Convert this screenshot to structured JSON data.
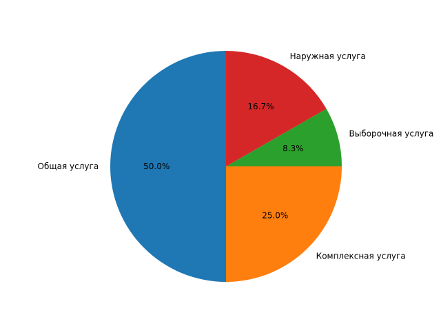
{
  "chart_data": {
    "type": "pie",
    "start_angle_deg": 90,
    "direction": "counterclockwise",
    "title": "",
    "slices": [
      {
        "label": "Общая услуга",
        "value": 50.0,
        "pct_label": "50.0%",
        "color": "#1f77b4"
      },
      {
        "label": "Комплексная услуга",
        "value": 25.0,
        "pct_label": "25.0%",
        "color": "#ff7f0e"
      },
      {
        "label": "Выборочная услуга",
        "value": 8.3,
        "pct_label": "8.3%",
        "color": "#2ca02c"
      },
      {
        "label": "Наружная услуга",
        "value": 16.7,
        "pct_label": "16.7%",
        "color": "#d62728"
      }
    ]
  }
}
